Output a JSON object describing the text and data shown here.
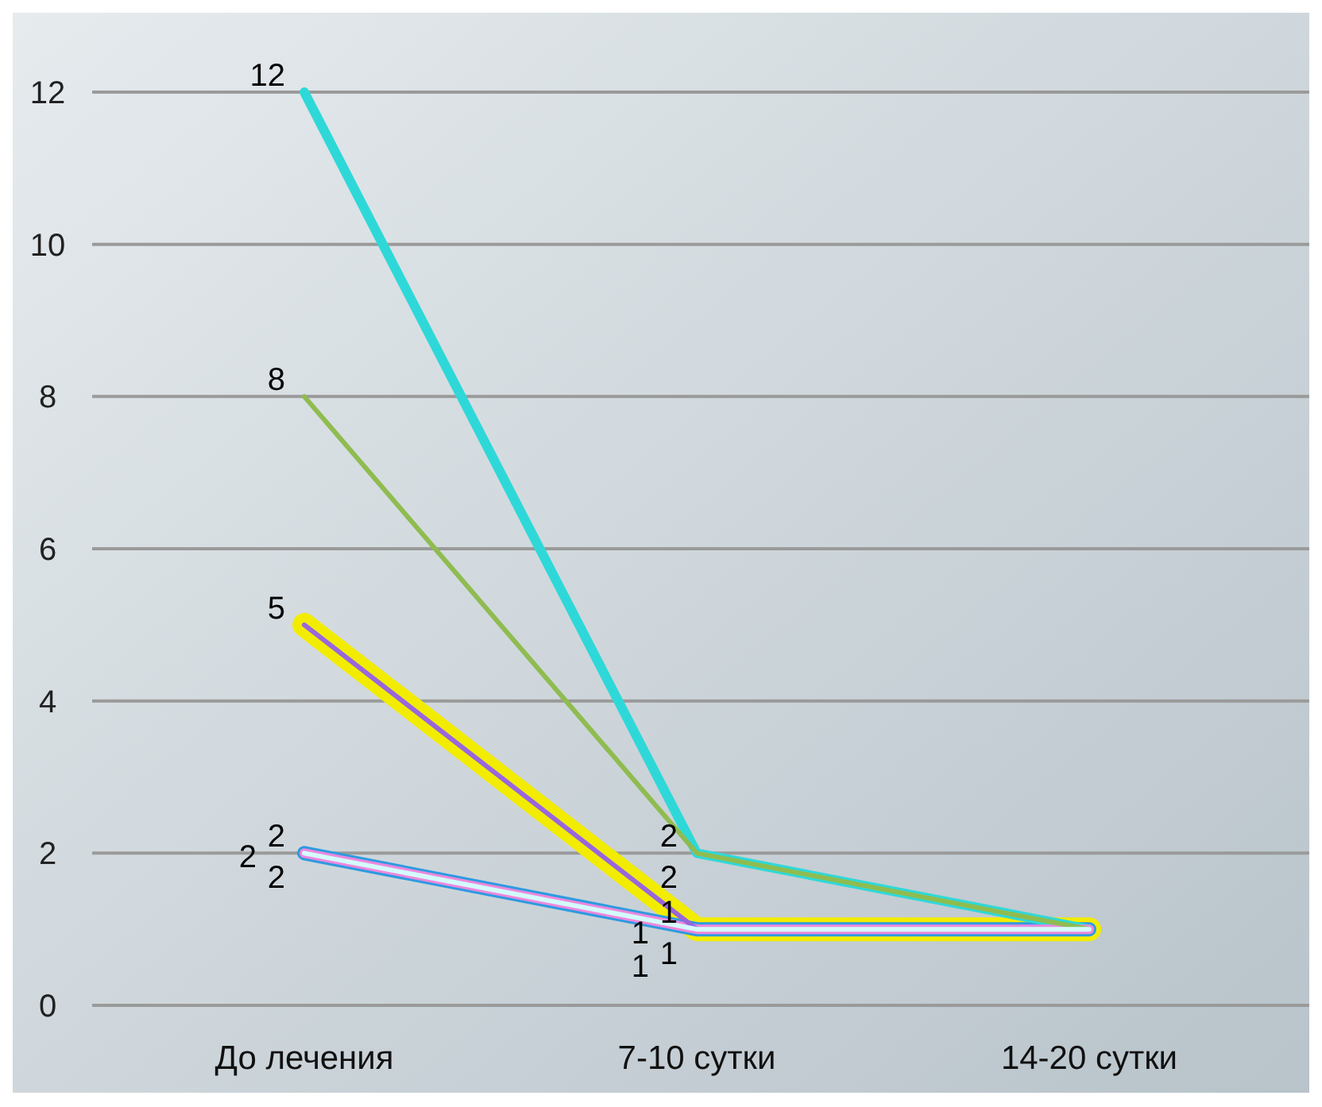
{
  "chart_data": {
    "type": "line",
    "categories": [
      "До лечения",
      "7-10 сутки",
      "14-20 сутки"
    ],
    "series": [
      {
        "color": "#2fd8d8",
        "values": [
          12,
          2,
          1
        ],
        "value_labels": [
          "12",
          "2",
          null
        ]
      },
      {
        "color": "#8fbc50",
        "values": [
          8,
          2,
          1
        ],
        "value_labels": [
          "8",
          "2",
          null
        ]
      },
      {
        "color": "#f2ec00",
        "values": [
          5,
          1,
          1
        ],
        "value_labels": [
          "5",
          "1",
          null
        ]
      },
      {
        "color": "#9966dd",
        "values": [
          5,
          1,
          null
        ],
        "value_labels": [
          null,
          "1",
          null
        ]
      },
      {
        "color": "#2e9be0",
        "values": [
          2,
          1,
          1
        ],
        "value_labels": [
          "2",
          "1",
          null
        ]
      },
      {
        "color": "#ee88dd",
        "values": [
          2,
          1,
          1
        ],
        "value_labels": [
          "2",
          "1",
          null
        ]
      },
      {
        "color": "#d4fbfb",
        "values": [
          2,
          1,
          1
        ],
        "value_labels": [
          "2",
          null,
          null
        ]
      }
    ],
    "ylim": [
      0,
      12
    ],
    "yticks": [
      0,
      2,
      4,
      6,
      8,
      10,
      12
    ],
    "grid": "y",
    "marker": "none",
    "line_style": "solid"
  }
}
